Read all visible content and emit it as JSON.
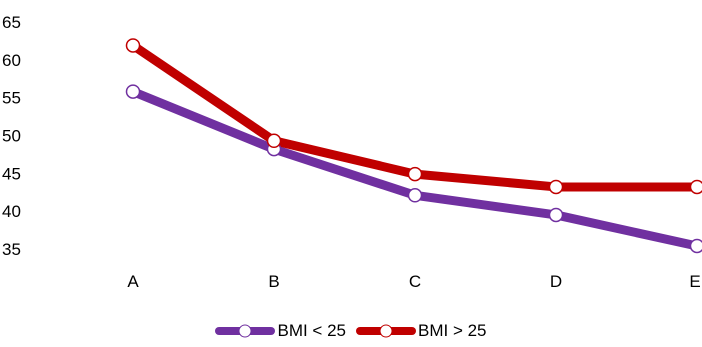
{
  "chart_data": {
    "type": "line",
    "categories": [
      "A",
      "B",
      "C",
      "D",
      "E"
    ],
    "series": [
      {
        "name": "BMI < 25",
        "values": [
          55.8,
          48.2,
          42.1,
          39.5,
          35.4
        ],
        "color": "#7030A0"
      },
      {
        "name": "BMI > 25",
        "values": [
          61.9,
          49.3,
          44.9,
          43.2,
          43.2
        ],
        "color": "#C00000"
      }
    ],
    "y_ticks": [
      "35",
      "40",
      "45",
      "50",
      "55",
      "60",
      "65"
    ],
    "ylim": [
      35,
      65
    ],
    "title": "",
    "xlabel": "",
    "ylabel": "",
    "grid": false,
    "legend_position": "bottom",
    "marker_color": "#FFFFFF"
  }
}
